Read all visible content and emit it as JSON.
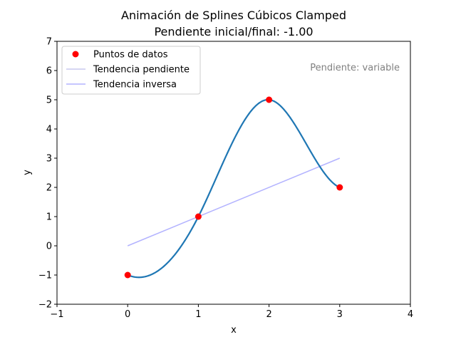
{
  "chart_data": {
    "type": "line",
    "title_line1": "Animación de Splines Cúbicos Clamped",
    "title_line2": "Pendiente inicial/final: -1.00",
    "xlabel": "x",
    "ylabel": "y",
    "xlim": [
      -1,
      4
    ],
    "ylim": [
      -2,
      7
    ],
    "xticks": [
      "−1",
      "0",
      "1",
      "2",
      "3",
      "4"
    ],
    "yticks": [
      "−2",
      "−1",
      "0",
      "1",
      "2",
      "3",
      "4",
      "5",
      "6",
      "7"
    ],
    "annotation": "Pendiente: variable",
    "annotation_color": "#808080",
    "legend_position": "upper-left",
    "legend": {
      "points": "Puntos de datos",
      "slope": "Tendencia pendiente",
      "inverse": "Tendencia inversa"
    },
    "colors": {
      "spline": "#1f77b4",
      "points": "#ff0000",
      "slope": "#c8c8ee",
      "inverse": "#b3b3ff"
    },
    "points": {
      "x": [
        0,
        1,
        2,
        3
      ],
      "y": [
        -1,
        1,
        5,
        2
      ]
    },
    "end_slope": -1.0,
    "inverse_line": {
      "x": [
        0,
        3
      ],
      "y": [
        0,
        3
      ]
    }
  }
}
